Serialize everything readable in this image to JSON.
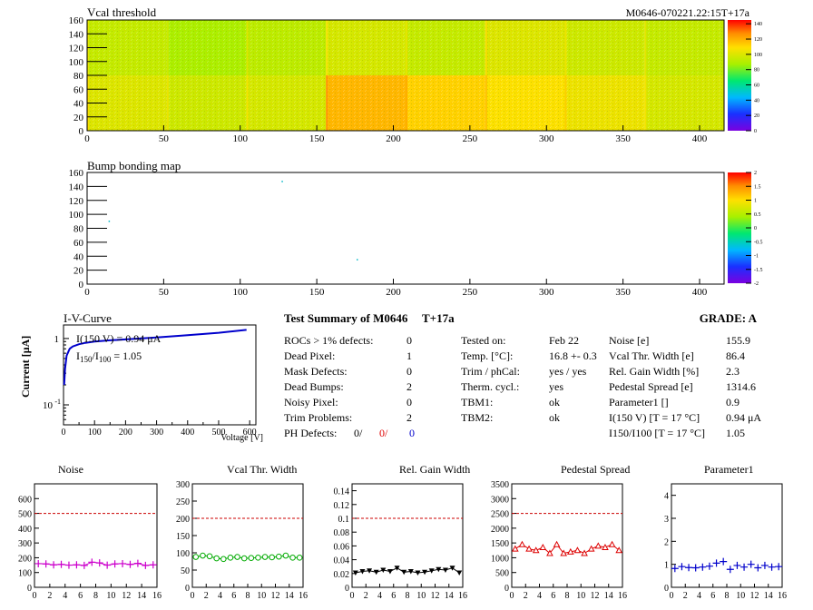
{
  "header": {
    "title_left": "Vcal threshold",
    "title_right": "M0646-070221.22:15T+17a"
  },
  "vcal_map": {
    "y_ticks": [
      "0",
      "20",
      "40",
      "60",
      "80",
      "100",
      "120",
      "140",
      "160"
    ],
    "x_ticks": [
      "0",
      "50",
      "100",
      "150",
      "200",
      "250",
      "300",
      "350",
      "400"
    ],
    "colorbar_ticks": [
      "0",
      "20",
      "40",
      "60",
      "80",
      "100",
      "120",
      "140"
    ]
  },
  "bump_map": {
    "title": "Bump bonding map",
    "y_ticks": [
      "0",
      "20",
      "40",
      "60",
      "80",
      "100",
      "120",
      "140",
      "160"
    ],
    "x_ticks": [
      "0",
      "50",
      "100",
      "150",
      "200",
      "250",
      "300",
      "350",
      "400"
    ],
    "colorbar_ticks": [
      "-2",
      "-1.5",
      "-1",
      "-0.5",
      "0",
      "0.5",
      "1",
      "1.5",
      "2"
    ]
  },
  "iv": {
    "title": "I-V-Curve",
    "ylabel": "Current [μA]",
    "xlabel": "Voltage [V]",
    "x_ticks": [
      "0",
      "100",
      "200",
      "300",
      "400",
      "500",
      "600"
    ],
    "y_tick_1": "1",
    "y_tick_01": "10",
    "y_tick_01_exp": "-1",
    "annot1": "I(150 V) = 0.94 μA",
    "annot2_pre": "I",
    "annot2_sub1": "150",
    "annot2_mid": "/I",
    "annot2_sub2": "100",
    "annot2_post": " =  1.05"
  },
  "summary": {
    "title": "Test Summary of M0646",
    "tag": "T+17a",
    "grade": "GRADE:  A",
    "defects": [
      {
        "label": "ROCs > 1% defects:",
        "value": "0"
      },
      {
        "label": "Dead Pixel:",
        "value": "1"
      },
      {
        "label": "Mask Defects:",
        "value": "0"
      },
      {
        "label": "Dead Bumps:",
        "value": "2"
      },
      {
        "label": "Noisy Pixel:",
        "value": "0"
      },
      {
        "label": "Trim Problems:",
        "value": "2"
      }
    ],
    "ph_label": "PH Defects:",
    "ph_values": [
      "0/",
      "0/",
      "0"
    ],
    "ph_colors": [
      "#000000",
      "#e00000",
      "#0000cc"
    ],
    "tests": [
      {
        "label": "Tested on:",
        "value": "Feb 22"
      },
      {
        "label": "Temp. [°C]:",
        "value": "16.8 +- 0.3"
      },
      {
        "label": "Trim / phCal:",
        "value": "yes / yes"
      },
      {
        "label": "Therm. cycl.:",
        "value": "yes"
      },
      {
        "label": "TBM1:",
        "value": "ok"
      },
      {
        "label": "TBM2:",
        "value": "ok"
      }
    ],
    "params": [
      {
        "label": "Noise [e]",
        "value": "155.9"
      },
      {
        "label": "Vcal Thr. Width [e]",
        "value": "86.4"
      },
      {
        "label": "Rel. Gain Width [%]",
        "value": "2.3"
      },
      {
        "label": "Pedestal Spread [e]",
        "value": "1314.6"
      },
      {
        "label": "Parameter1 []",
        "value": "0.9"
      },
      {
        "label": "I(150 V) [T = 17 °C]",
        "value": "0.94 μA"
      },
      {
        "label": "I150/I100  [T = 17 °C]",
        "value": "1.05"
      }
    ]
  },
  "chart_data": [
    {
      "type": "heatmap",
      "title": "Vcal threshold",
      "xlim": [
        0,
        416
      ],
      "ylim": [
        0,
        160
      ],
      "grid": "2x8 readout chips (52x80 each)",
      "zlim": [
        0,
        145
      ],
      "roc_mean_vcal": [
        [
          94,
          88,
          92,
          98,
          94,
          100,
          96,
          94
        ],
        [
          100,
          96,
          98,
          118,
          112,
          108,
          104,
          98
        ]
      ]
    },
    {
      "type": "heatmap",
      "title": "Bump bonding map",
      "xlim": [
        0,
        416
      ],
      "ylim": [
        0,
        160
      ],
      "zlim": [
        -2,
        2
      ],
      "points": [
        [
          14,
          91
        ],
        [
          127,
          148
        ],
        [
          176,
          36
        ]
      ]
    },
    {
      "type": "line",
      "title": "I-V-Curve",
      "xlabel": "Voltage [V]",
      "ylabel": "Current [μA]",
      "log_y": true,
      "xlim": [
        0,
        620
      ],
      "ylim": [
        0.05,
        1.6
      ],
      "x": [
        2,
        5,
        10,
        20,
        30,
        50,
        70,
        100,
        150,
        200,
        300,
        400,
        500,
        590
      ],
      "y": [
        0.2,
        0.35,
        0.55,
        0.7,
        0.76,
        0.82,
        0.86,
        0.9,
        0.94,
        0.97,
        1.04,
        1.12,
        1.22,
        1.35
      ]
    },
    {
      "type": "scatter",
      "title": "Noise",
      "xlim": [
        0,
        16
      ],
      "ylim": [
        0,
        700
      ],
      "y_ticks": [
        "0",
        "100",
        "200",
        "300",
        "400",
        "500",
        "600"
      ],
      "x_ticks": [
        "0",
        "2",
        "4",
        "6",
        "8",
        "10",
        "12",
        "14",
        "16"
      ],
      "ref_line": 500,
      "marker": "cross",
      "color": "#cc00cc",
      "x": [
        0,
        1,
        2,
        3,
        4,
        5,
        6,
        7,
        8,
        9,
        10,
        11,
        12,
        13,
        14,
        15
      ],
      "y": [
        160,
        158,
        152,
        155,
        150,
        152,
        148,
        170,
        165,
        150,
        158,
        160,
        155,
        162,
        148,
        152
      ]
    },
    {
      "type": "scatter",
      "title": "Vcal Thr. Width",
      "xlim": [
        0,
        16
      ],
      "ylim": [
        0,
        300
      ],
      "y_ticks": [
        "0",
        "50",
        "100",
        "150",
        "200",
        "250",
        "300"
      ],
      "x_ticks": [
        "0",
        "2",
        "4",
        "6",
        "8",
        "10",
        "12",
        "14",
        "16"
      ],
      "ref_line": 200,
      "marker": "circle",
      "color": "#00aa00",
      "x": [
        0,
        1,
        2,
        3,
        4,
        5,
        6,
        7,
        8,
        9,
        10,
        11,
        12,
        13,
        14,
        15
      ],
      "y": [
        88,
        92,
        90,
        84,
        82,
        86,
        88,
        84,
        85,
        86,
        88,
        87,
        89,
        92,
        86,
        86
      ]
    },
    {
      "type": "scatter",
      "title": "Rel. Gain Width",
      "xlim": [
        0,
        16
      ],
      "ylim": [
        0,
        0.15
      ],
      "y_ticks": [
        "0",
        "0.02",
        "0.04",
        "0.06",
        "0.08",
        "0.1",
        "0.12",
        "0.14"
      ],
      "x_ticks": [
        "0",
        "2",
        "4",
        "6",
        "8",
        "10",
        "12",
        "14",
        "16"
      ],
      "ref_line": 0.1,
      "marker": "triangle-down",
      "color": "#000000",
      "x": [
        0,
        1,
        2,
        3,
        4,
        5,
        6,
        7,
        8,
        9,
        10,
        11,
        12,
        13,
        14,
        15
      ],
      "y": [
        0.021,
        0.023,
        0.024,
        0.022,
        0.025,
        0.023,
        0.028,
        0.022,
        0.023,
        0.021,
        0.022,
        0.024,
        0.026,
        0.025,
        0.028,
        0.021
      ]
    },
    {
      "type": "scatter",
      "title": "Pedestal Spread",
      "xlim": [
        0,
        16
      ],
      "ylim": [
        0,
        3500
      ],
      "y_ticks": [
        "0",
        "500",
        "1000",
        "1500",
        "2000",
        "2500",
        "3000",
        "3500"
      ],
      "x_ticks": [
        "0",
        "2",
        "4",
        "6",
        "8",
        "10",
        "12",
        "14",
        "16"
      ],
      "ref_line": 2500,
      "marker": "triangle-up",
      "color": "#dd0000",
      "x": [
        0,
        1,
        2,
        3,
        4,
        5,
        6,
        7,
        8,
        9,
        10,
        11,
        12,
        13,
        14,
        15
      ],
      "y": [
        1300,
        1450,
        1300,
        1250,
        1350,
        1150,
        1450,
        1150,
        1200,
        1250,
        1150,
        1300,
        1400,
        1350,
        1450,
        1250
      ]
    },
    {
      "type": "scatter",
      "title": "Parameter1",
      "xlim": [
        0,
        16
      ],
      "ylim": [
        0,
        4.5
      ],
      "y_ticks": [
        "0",
        "1",
        "2",
        "3",
        "4"
      ],
      "x_ticks": [
        "0",
        "2",
        "4",
        "6",
        "8",
        "10",
        "12",
        "14",
        "16"
      ],
      "ref_line": null,
      "marker": "cross",
      "color": "#0000cc",
      "x": [
        0,
        1,
        2,
        3,
        4,
        5,
        6,
        7,
        8,
        9,
        10,
        11,
        12,
        13,
        14,
        15
      ],
      "y": [
        0.82,
        0.9,
        0.86,
        0.85,
        0.88,
        0.92,
        1.05,
        1.12,
        0.78,
        0.95,
        0.88,
        1.0,
        0.85,
        0.95,
        0.88,
        0.9
      ]
    }
  ]
}
